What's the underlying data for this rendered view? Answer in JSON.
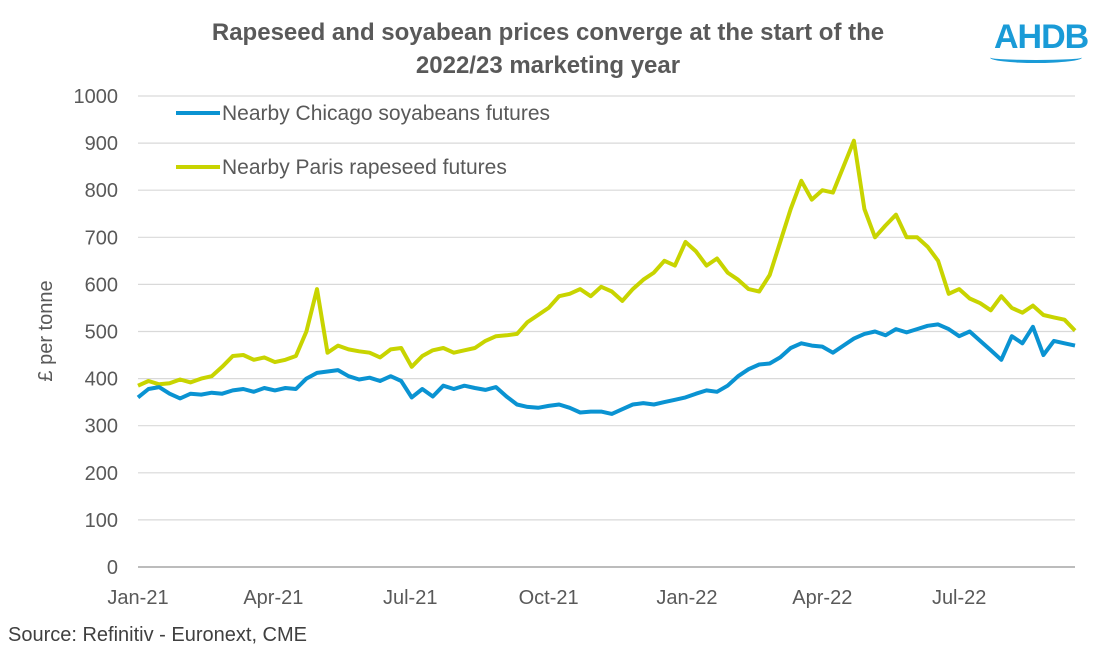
{
  "chart_data": {
    "type": "line",
    "title": [
      "Rapeseed and soyabean prices converge at the start of the",
      "2022/23 marketing year"
    ],
    "ylabel": "£ per tonne",
    "xlabel": "",
    "ylim": [
      0,
      1000
    ],
    "yticks": [
      0,
      100,
      200,
      300,
      400,
      500,
      600,
      700,
      800,
      900,
      1000
    ],
    "xlim": [
      "2021-01-01",
      "2022-09-16"
    ],
    "xticks": [
      {
        "date": "2021-01-01",
        "label": "Jan-21"
      },
      {
        "date": "2021-04-01",
        "label": "Apr-21"
      },
      {
        "date": "2021-07-01",
        "label": "Jul-21"
      },
      {
        "date": "2021-10-01",
        "label": "Oct-21"
      },
      {
        "date": "2022-01-01",
        "label": "Jan-22"
      },
      {
        "date": "2022-04-01",
        "label": "Apr-22"
      },
      {
        "date": "2022-07-01",
        "label": "Jul-22"
      }
    ],
    "grid": true,
    "legend_position": "top-left",
    "x": [
      "2021-01-01",
      "2021-01-08",
      "2021-01-15",
      "2021-01-22",
      "2021-01-29",
      "2021-02-05",
      "2021-02-12",
      "2021-02-19",
      "2021-02-26",
      "2021-03-05",
      "2021-03-12",
      "2021-03-19",
      "2021-03-26",
      "2021-04-02",
      "2021-04-09",
      "2021-04-16",
      "2021-04-23",
      "2021-04-30",
      "2021-05-07",
      "2021-05-14",
      "2021-05-21",
      "2021-05-28",
      "2021-06-04",
      "2021-06-11",
      "2021-06-18",
      "2021-06-25",
      "2021-07-02",
      "2021-07-09",
      "2021-07-16",
      "2021-07-23",
      "2021-07-30",
      "2021-08-06",
      "2021-08-13",
      "2021-08-20",
      "2021-08-27",
      "2021-09-03",
      "2021-09-10",
      "2021-09-17",
      "2021-09-24",
      "2021-10-01",
      "2021-10-08",
      "2021-10-15",
      "2021-10-22",
      "2021-10-29",
      "2021-11-05",
      "2021-11-12",
      "2021-11-19",
      "2021-11-26",
      "2021-12-03",
      "2021-12-10",
      "2021-12-17",
      "2021-12-24",
      "2021-12-31",
      "2022-01-07",
      "2022-01-14",
      "2022-01-21",
      "2022-01-28",
      "2022-02-04",
      "2022-02-11",
      "2022-02-18",
      "2022-02-25",
      "2022-03-04",
      "2022-03-11",
      "2022-03-18",
      "2022-03-25",
      "2022-04-01",
      "2022-04-08",
      "2022-04-15",
      "2022-04-22",
      "2022-04-29",
      "2022-05-06",
      "2022-05-13",
      "2022-05-20",
      "2022-05-27",
      "2022-06-03",
      "2022-06-10",
      "2022-06-17",
      "2022-06-24",
      "2022-07-01",
      "2022-07-08",
      "2022-07-15",
      "2022-07-22",
      "2022-07-29",
      "2022-08-05",
      "2022-08-12",
      "2022-08-19",
      "2022-08-26",
      "2022-09-02",
      "2022-09-09",
      "2022-09-16"
    ],
    "series": [
      {
        "name": "Nearby Chicago soyabeans futures",
        "color": "#0a93d2",
        "values": [
          360,
          378,
          382,
          368,
          358,
          368,
          366,
          370,
          368,
          375,
          378,
          372,
          380,
          375,
          380,
          378,
          400,
          412,
          415,
          418,
          405,
          398,
          402,
          395,
          405,
          395,
          360,
          378,
          362,
          385,
          378,
          385,
          380,
          376,
          382,
          362,
          345,
          340,
          338,
          342,
          345,
          338,
          328,
          330,
          330,
          325,
          335,
          345,
          348,
          345,
          350,
          355,
          360,
          368,
          375,
          372,
          385,
          405,
          420,
          430,
          432,
          445,
          465,
          475,
          470,
          468,
          455,
          470,
          485,
          495,
          500,
          492,
          505,
          498,
          505,
          512,
          515,
          505,
          490,
          500,
          480,
          460,
          440,
          490,
          475,
          510,
          450,
          480,
          475,
          470
        ]
      },
      {
        "name": "Nearby Paris rapeseed futures",
        "color": "#c8d400",
        "values": [
          385,
          395,
          388,
          390,
          398,
          392,
          400,
          405,
          425,
          448,
          450,
          440,
          445,
          435,
          440,
          448,
          500,
          590,
          455,
          470,
          462,
          458,
          455,
          445,
          462,
          465,
          425,
          448,
          460,
          465,
          455,
          460,
          465,
          480,
          490,
          492,
          495,
          520,
          535,
          550,
          575,
          580,
          590,
          575,
          595,
          585,
          565,
          590,
          610,
          625,
          650,
          640,
          690,
          670,
          640,
          655,
          625,
          610,
          590,
          585,
          620,
          690,
          760,
          820,
          780,
          800,
          795,
          850,
          905,
          760,
          700,
          725,
          748,
          700,
          700,
          680,
          650,
          580,
          590,
          570,
          560,
          545,
          575,
          550,
          540,
          555,
          535,
          530,
          525,
          502
        ]
      }
    ]
  },
  "source": "Source: Refinitiv - Euronext, CME",
  "logo": "AHDB"
}
